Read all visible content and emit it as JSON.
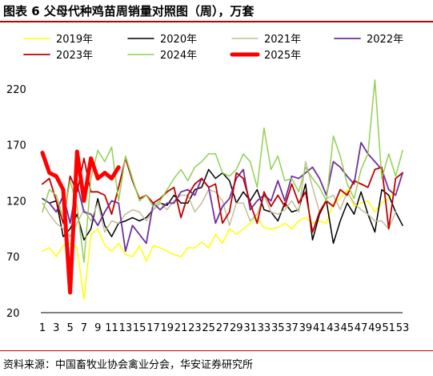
{
  "figure": {
    "title": "图表 6  父母代种鸡苗周销量对照图（周），万套",
    "source": "资料来源：中国畜牧业协会禽业分会，华安证券研究所"
  },
  "chart_data": {
    "type": "line",
    "x_ticks": [
      "1",
      "3",
      "5",
      "7",
      "9",
      "11",
      "13",
      "15",
      "17",
      "19",
      "21",
      "23",
      "25",
      "27",
      "29",
      "31",
      "33",
      "35",
      "37",
      "39",
      "41",
      "43",
      "45",
      "47",
      "49",
      "51",
      "53"
    ],
    "y_ticks": [
      20,
      70,
      120,
      170,
      220
    ],
    "ylim": [
      20,
      230
    ],
    "xlim": [
      1,
      53
    ],
    "grid": false,
    "legend_position": "top",
    "series": [
      {
        "name": "2019年",
        "color": "#ffff00",
        "width": 1.5,
        "values": [
          75,
          78,
          70,
          80,
          82,
          78,
          32,
          90,
          95,
          80,
          75,
          82,
          72,
          70,
          80,
          66,
          80,
          78,
          75,
          72,
          70,
          78,
          78,
          83,
          78,
          90,
          82,
          95,
          90,
          95,
          100,
          105,
          96,
          95,
          96,
          100,
          95,
          102,
          105,
          100,
          102,
          100,
          118,
          122,
          130,
          115,
          118,
          120,
          110,
          118,
          122,
          130,
          null
        ]
      },
      {
        "name": "2020年",
        "color": "#000000",
        "width": 1.5,
        "values": [
          122,
          118,
          120,
          88,
          95,
          108,
          85,
          95,
          122,
          98,
          88,
          100,
          102,
          105,
          102,
          105,
          112,
          118,
          116,
          125,
          118,
          118,
          130,
          132,
          148,
          140,
          145,
          138,
          118,
          128,
          120,
          130,
          112,
          110,
          102,
          118,
          110,
          112,
          135,
          85,
          108,
          120,
          82,
          102,
          118,
          108,
          128,
          108,
          92,
          130,
          125,
          110,
          98
        ]
      },
      {
        "name": "2021年",
        "color": "#c4bd97",
        "width": 1.5,
        "values": [
          118,
          108,
          100,
          95,
          88,
          100,
          112,
          102,
          118,
          92,
          102,
          100,
          108,
          112,
          110,
          102,
          112,
          118,
          112,
          120,
          125,
          125,
          110,
          118,
          130,
          128,
          120,
          98,
          118,
          118,
          102,
          108,
          125,
          110,
          108,
          112,
          120,
          110,
          155,
          132,
          110,
          122,
          125,
          112,
          128,
          118,
          112,
          108,
          102,
          102,
          95,
          110,
          null
        ]
      },
      {
        "name": "2022年",
        "color": "#7030a0",
        "width": 1.8,
        "values": [
          122,
          118,
          110,
          125,
          100,
          135,
          110,
          108,
          98,
          110,
          120,
          118,
          75,
          98,
          90,
          82,
          118,
          112,
          118,
          118,
          128,
          130,
          125,
          140,
          132,
          100,
          115,
          122,
          140,
          148,
          112,
          120,
          125,
          120,
          138,
          120,
          142,
          140,
          145,
          150,
          140,
          125,
          155,
          150,
          142,
          135,
          172,
          162,
          155,
          148,
          130,
          125,
          145
        ]
      },
      {
        "name": "2023年",
        "color": "#c00000",
        "width": 1.8,
        "values": [
          135,
          140,
          120,
          100,
          142,
          128,
          158,
          128,
          128,
          125,
          108,
          132,
          158,
          138,
          122,
          125,
          118,
          122,
          128,
          132,
          105,
          125,
          135,
          140,
          132,
          135,
          100,
          110,
          145,
          140,
          118,
          100,
          128,
          115,
          125,
          115,
          135,
          118,
          128,
          92,
          110,
          120,
          115,
          130,
          125,
          138,
          135,
          132,
          148,
          150,
          95,
          140,
          145
        ]
      },
      {
        "name": "2024年",
        "color": "#92d050",
        "width": 1.5,
        "values": [
          110,
          130,
          125,
          105,
          138,
          115,
          65,
          140,
          165,
          155,
          168,
          120,
          160,
          140,
          120,
          125,
          115,
          120,
          130,
          140,
          148,
          138,
          150,
          155,
          162,
          162,
          145,
          142,
          148,
          162,
          155,
          132,
          185,
          148,
          160,
          138,
          140,
          128,
          150,
          140,
          132,
          120,
          178,
          160,
          135,
          122,
          148,
          162,
          228,
          140,
          162,
          142,
          165
        ]
      },
      {
        "name": "2025年",
        "color": "#ff0000",
        "width": 5,
        "values": [
          163,
          145,
          142,
          130,
          38,
          164,
          120,
          158,
          140,
          145,
          140,
          150
        ]
      }
    ]
  }
}
